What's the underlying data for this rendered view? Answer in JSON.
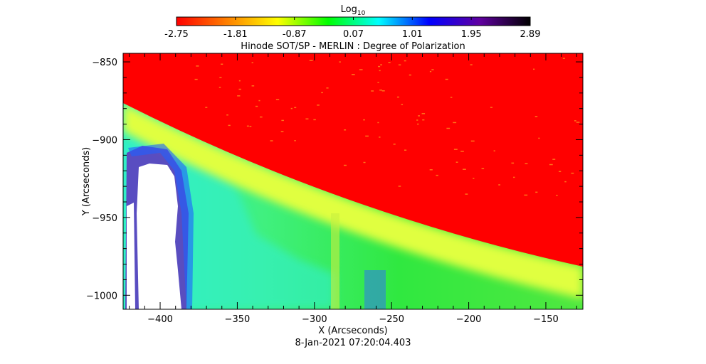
{
  "chart_data": {
    "type": "heatmap",
    "title": "Hinode SOT/SP - MERLIN : Degree of Polarization",
    "xlabel": "X (Arcseconds)",
    "ylabel": "Y (Arcseconds)",
    "timestamp": "8-Jan-2021 07:20:04.403",
    "xlim": [
      -424,
      -126
    ],
    "ylim": [
      -1009,
      -844.5
    ],
    "xticks": [
      -400,
      -350,
      -300,
      -250,
      -200,
      -150
    ],
    "yticks": [
      -850,
      -900,
      -950,
      -1000
    ],
    "colorbar": {
      "label": "Log",
      "label_sub": "10",
      "range": [
        -2.75,
        2.89
      ],
      "ticks": [
        "-2.75",
        "-1.81",
        "-0.87",
        "0.07",
        "1.01",
        "1.95",
        "2.89"
      ],
      "colors": [
        "#ff0000",
        "#ff8000",
        "#ffff00",
        "#00ff00",
        "#00ffff",
        "#0000ff",
        "#6000a0",
        "#000000"
      ]
    }
  }
}
